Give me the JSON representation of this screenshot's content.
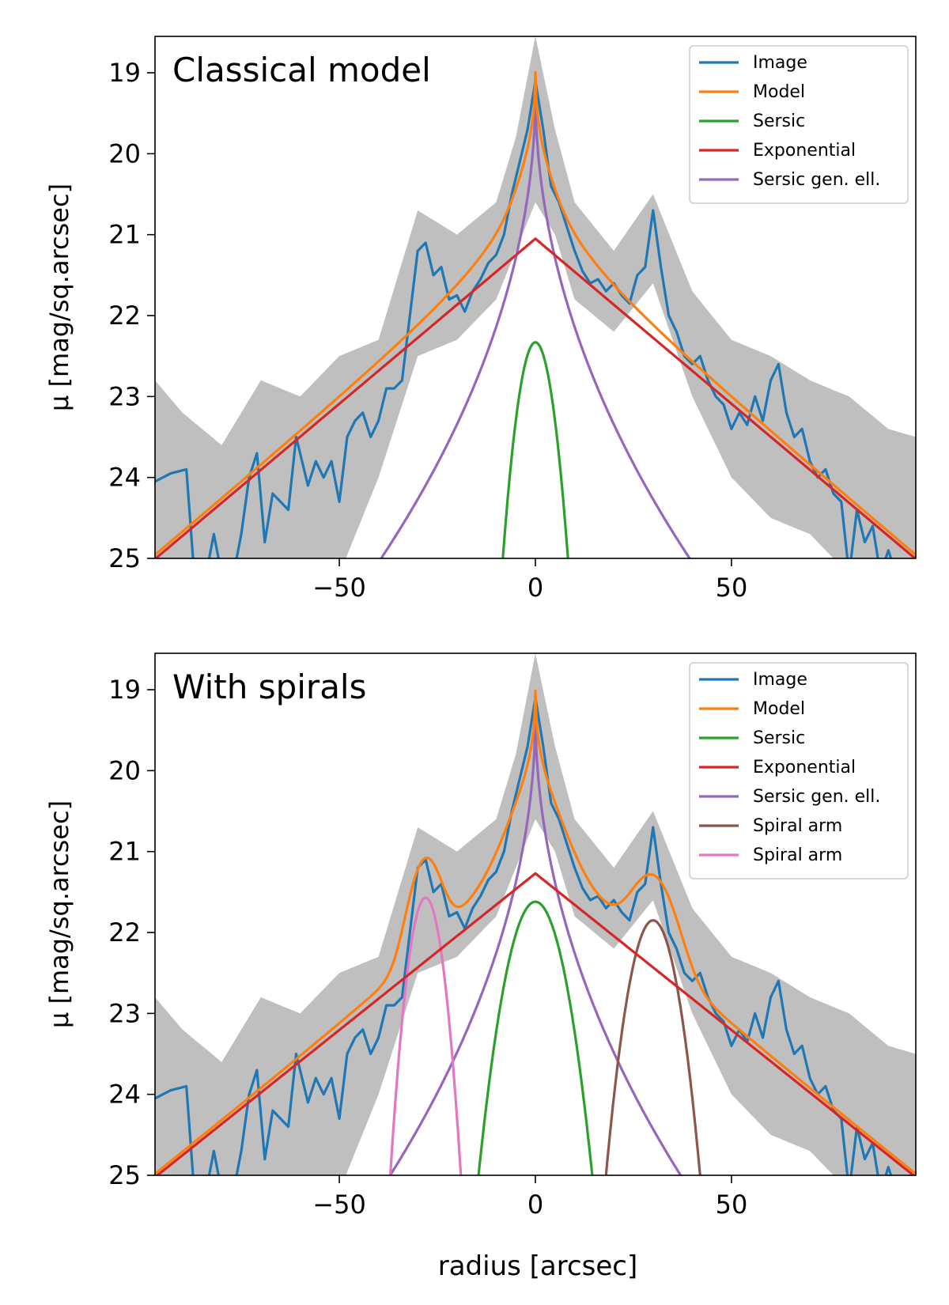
{
  "chart_data": [
    {
      "type": "line",
      "panel_label": "Classical model",
      "xlabel": "",
      "ylabel": "μ [mag/sq.arcsec]",
      "xlim": [
        -97,
        97
      ],
      "ylim": [
        25,
        18.55
      ],
      "y_inverted": true,
      "xticks": [
        -50,
        0,
        50
      ],
      "xtick_labels": [
        "−50",
        "0",
        "50"
      ],
      "yticks": [
        19,
        20,
        21,
        22,
        23,
        24,
        25
      ],
      "ytick_labels": [
        "19",
        "20",
        "21",
        "22",
        "23",
        "24",
        "25"
      ],
      "grid": false,
      "legend_position": "top-right",
      "legend": [
        "Image",
        "Model",
        "Sersic",
        "Exponential",
        "Sersic gen. ell."
      ],
      "colors": {
        "image": "#1f77b4",
        "model": "#ff7f0e",
        "sersic": "#2ca02c",
        "exponential": "#d62728",
        "sersic_gen_ell": "#9467bd",
        "uncertainty": "#bfbfbf"
      },
      "image_profile": [
        [
          -97,
          24.05
        ],
        [
          -93,
          23.95
        ],
        [
          -89,
          23.9
        ],
        [
          -87,
          25.2
        ],
        [
          -84,
          25.2
        ],
        [
          -82,
          24.7
        ],
        [
          -80,
          25.2
        ],
        [
          -77,
          25.2
        ],
        [
          -75,
          24.7
        ],
        [
          -73,
          24.0
        ],
        [
          -71,
          23.7
        ],
        [
          -69,
          24.8
        ],
        [
          -67,
          24.2
        ],
        [
          -65,
          24.3
        ],
        [
          -63,
          24.4
        ],
        [
          -61,
          23.5
        ],
        [
          -59,
          23.9
        ],
        [
          -58,
          24.1
        ],
        [
          -56,
          23.8
        ],
        [
          -54,
          24.0
        ],
        [
          -52,
          23.8
        ],
        [
          -50,
          24.3
        ],
        [
          -48,
          23.5
        ],
        [
          -46,
          23.3
        ],
        [
          -44,
          23.2
        ],
        [
          -42,
          23.5
        ],
        [
          -40,
          23.3
        ],
        [
          -38,
          22.9
        ],
        [
          -36,
          22.9
        ],
        [
          -34,
          22.8
        ],
        [
          -32,
          22.0
        ],
        [
          -30,
          21.2
        ],
        [
          -28,
          21.1
        ],
        [
          -26,
          21.5
        ],
        [
          -24,
          21.4
        ],
        [
          -22,
          21.8
        ],
        [
          -20,
          21.75
        ],
        [
          -18,
          21.95
        ],
        [
          -16,
          21.7
        ],
        [
          -14,
          21.55
        ],
        [
          -12,
          21.35
        ],
        [
          -10,
          21.25
        ],
        [
          -8,
          21.0
        ],
        [
          -6,
          20.5
        ],
        [
          -4,
          20.1
        ],
        [
          -2,
          19.7
        ],
        [
          0,
          19.1
        ],
        [
          2,
          19.7
        ],
        [
          4,
          20.4
        ],
        [
          6,
          20.6
        ],
        [
          8,
          20.9
        ],
        [
          10,
          21.2
        ],
        [
          12,
          21.45
        ],
        [
          14,
          21.6
        ],
        [
          16,
          21.55
        ],
        [
          18,
          21.7
        ],
        [
          20,
          21.6
        ],
        [
          22,
          21.75
        ],
        [
          24,
          21.85
        ],
        [
          26,
          21.5
        ],
        [
          28,
          21.4
        ],
        [
          30,
          20.7
        ],
        [
          32,
          21.4
        ],
        [
          34,
          22.0
        ],
        [
          36,
          22.2
        ],
        [
          38,
          22.5
        ],
        [
          40,
          22.6
        ],
        [
          42,
          22.5
        ],
        [
          44,
          22.8
        ],
        [
          46,
          23.0
        ],
        [
          48,
          23.1
        ],
        [
          50,
          23.4
        ],
        [
          52,
          23.2
        ],
        [
          54,
          23.35
        ],
        [
          56,
          23.0
        ],
        [
          58,
          23.3
        ],
        [
          60,
          22.8
        ],
        [
          62,
          22.6
        ],
        [
          64,
          23.2
        ],
        [
          66,
          23.5
        ],
        [
          68,
          23.4
        ],
        [
          70,
          23.8
        ],
        [
          72,
          24.0
        ],
        [
          74,
          23.9
        ],
        [
          76,
          24.2
        ],
        [
          78,
          24.3
        ],
        [
          80,
          25.2
        ],
        [
          82,
          24.4
        ],
        [
          84,
          24.8
        ],
        [
          86,
          24.6
        ],
        [
          88,
          25.2
        ],
        [
          90,
          24.9
        ],
        [
          92,
          25.2
        ],
        [
          94,
          25.2
        ],
        [
          97,
          25.2
        ]
      ],
      "uncertainty_band": {
        "lower": [
          [
            -97,
            22.8
          ],
          [
            -90,
            23.2
          ],
          [
            -80,
            23.6
          ],
          [
            -70,
            22.8
          ],
          [
            -60,
            23.0
          ],
          [
            -50,
            22.5
          ],
          [
            -40,
            22.3
          ],
          [
            -30,
            20.7
          ],
          [
            -20,
            21.0
          ],
          [
            -10,
            20.6
          ],
          [
            -5,
            19.8
          ],
          [
            0,
            18.55
          ],
          [
            5,
            19.7
          ],
          [
            10,
            20.6
          ],
          [
            20,
            21.2
          ],
          [
            30,
            20.5
          ],
          [
            40,
            21.7
          ],
          [
            50,
            22.3
          ],
          [
            60,
            22.5
          ],
          [
            70,
            22.8
          ],
          [
            80,
            23.0
          ],
          [
            90,
            23.4
          ],
          [
            97,
            23.5
          ]
        ],
        "upper": [
          [
            -97,
            25.2
          ],
          [
            -90,
            25.2
          ],
          [
            -80,
            25.2
          ],
          [
            -70,
            25.2
          ],
          [
            -60,
            25.2
          ],
          [
            -50,
            25.2
          ],
          [
            -40,
            24.0
          ],
          [
            -30,
            22.5
          ],
          [
            -20,
            22.3
          ],
          [
            -10,
            21.8
          ],
          [
            -5,
            21.2
          ],
          [
            0,
            20.6
          ],
          [
            5,
            21.0
          ],
          [
            10,
            21.8
          ],
          [
            20,
            22.2
          ],
          [
            30,
            21.6
          ],
          [
            40,
            23.0
          ],
          [
            50,
            24.0
          ],
          [
            60,
            24.5
          ],
          [
            70,
            24.7
          ],
          [
            80,
            25.2
          ],
          [
            90,
            25.2
          ],
          [
            97,
            25.2
          ]
        ]
      },
      "components": {
        "sersic": {
          "center_mag": 22.33,
          "half_width_at_25": 8.3
        },
        "exponential": {
          "center_mag": 21.05,
          "slope_mag_per_arcsec": 0.0408
        },
        "sersic_gen_ell": {
          "center_mag": 19.23,
          "slope_mag_per_sqrt_arcsec": 0.92
        },
        "model_peak": 19.0
      }
    },
    {
      "type": "line",
      "panel_label": "With spirals",
      "xlabel": "radius [arcsec]",
      "ylabel": "μ [mag/sq.arcsec]",
      "xlim": [
        -97,
        97
      ],
      "ylim": [
        25,
        18.55
      ],
      "y_inverted": true,
      "xticks": [
        -50,
        0,
        50
      ],
      "xtick_labels": [
        "−50",
        "0",
        "50"
      ],
      "yticks": [
        19,
        20,
        21,
        22,
        23,
        24,
        25
      ],
      "ytick_labels": [
        "19",
        "20",
        "21",
        "22",
        "23",
        "24",
        "25"
      ],
      "grid": false,
      "legend_position": "top-right",
      "legend": [
        "Image",
        "Model",
        "Sersic",
        "Exponential",
        "Sersic gen. ell.",
        "Spiral arm",
        "Spiral arm"
      ],
      "colors": {
        "image": "#1f77b4",
        "model": "#ff7f0e",
        "sersic": "#2ca02c",
        "exponential": "#d62728",
        "sersic_gen_ell": "#9467bd",
        "spiral_1": "#8c564b",
        "spiral_2": "#e377c2",
        "uncertainty": "#bfbfbf"
      },
      "image_profile": [
        [
          -97,
          24.05
        ],
        [
          -93,
          23.95
        ],
        [
          -89,
          23.9
        ],
        [
          -87,
          25.2
        ],
        [
          -84,
          25.2
        ],
        [
          -82,
          24.7
        ],
        [
          -80,
          25.2
        ],
        [
          -77,
          25.2
        ],
        [
          -75,
          24.7
        ],
        [
          -73,
          24.0
        ],
        [
          -71,
          23.7
        ],
        [
          -69,
          24.8
        ],
        [
          -67,
          24.2
        ],
        [
          -65,
          24.3
        ],
        [
          -63,
          24.4
        ],
        [
          -61,
          23.5
        ],
        [
          -59,
          23.9
        ],
        [
          -58,
          24.1
        ],
        [
          -56,
          23.8
        ],
        [
          -54,
          24.0
        ],
        [
          -52,
          23.8
        ],
        [
          -50,
          24.3
        ],
        [
          -48,
          23.5
        ],
        [
          -46,
          23.3
        ],
        [
          -44,
          23.2
        ],
        [
          -42,
          23.5
        ],
        [
          -40,
          23.3
        ],
        [
          -38,
          22.9
        ],
        [
          -36,
          22.9
        ],
        [
          -34,
          22.8
        ],
        [
          -32,
          22.0
        ],
        [
          -30,
          21.2
        ],
        [
          -28,
          21.1
        ],
        [
          -26,
          21.5
        ],
        [
          -24,
          21.4
        ],
        [
          -22,
          21.8
        ],
        [
          -20,
          21.75
        ],
        [
          -18,
          21.95
        ],
        [
          -16,
          21.7
        ],
        [
          -14,
          21.55
        ],
        [
          -12,
          21.35
        ],
        [
          -10,
          21.25
        ],
        [
          -8,
          21.0
        ],
        [
          -6,
          20.5
        ],
        [
          -4,
          20.1
        ],
        [
          -2,
          19.7
        ],
        [
          0,
          19.1
        ],
        [
          2,
          19.7
        ],
        [
          4,
          20.4
        ],
        [
          6,
          20.6
        ],
        [
          8,
          20.9
        ],
        [
          10,
          21.2
        ],
        [
          12,
          21.45
        ],
        [
          14,
          21.6
        ],
        [
          16,
          21.55
        ],
        [
          18,
          21.7
        ],
        [
          20,
          21.6
        ],
        [
          22,
          21.75
        ],
        [
          24,
          21.85
        ],
        [
          26,
          21.5
        ],
        [
          28,
          21.4
        ],
        [
          30,
          20.7
        ],
        [
          32,
          21.4
        ],
        [
          34,
          22.0
        ],
        [
          36,
          22.2
        ],
        [
          38,
          22.5
        ],
        [
          40,
          22.6
        ],
        [
          42,
          22.5
        ],
        [
          44,
          22.8
        ],
        [
          46,
          23.0
        ],
        [
          48,
          23.1
        ],
        [
          50,
          23.4
        ],
        [
          52,
          23.2
        ],
        [
          54,
          23.35
        ],
        [
          56,
          23.0
        ],
        [
          58,
          23.3
        ],
        [
          60,
          22.8
        ],
        [
          62,
          22.6
        ],
        [
          64,
          23.2
        ],
        [
          66,
          23.5
        ],
        [
          68,
          23.4
        ],
        [
          70,
          23.8
        ],
        [
          72,
          24.0
        ],
        [
          74,
          23.9
        ],
        [
          76,
          24.2
        ],
        [
          78,
          24.3
        ],
        [
          80,
          25.2
        ],
        [
          82,
          24.4
        ],
        [
          84,
          24.8
        ],
        [
          86,
          24.6
        ],
        [
          88,
          25.2
        ],
        [
          90,
          24.9
        ],
        [
          92,
          25.2
        ],
        [
          94,
          25.2
        ],
        [
          97,
          25.2
        ]
      ],
      "uncertainty_band": {
        "lower": [
          [
            -97,
            22.8
          ],
          [
            -90,
            23.2
          ],
          [
            -80,
            23.6
          ],
          [
            -70,
            22.8
          ],
          [
            -60,
            23.0
          ],
          [
            -50,
            22.5
          ],
          [
            -40,
            22.3
          ],
          [
            -30,
            20.7
          ],
          [
            -20,
            21.0
          ],
          [
            -10,
            20.6
          ],
          [
            -5,
            19.8
          ],
          [
            0,
            18.55
          ],
          [
            5,
            19.7
          ],
          [
            10,
            20.6
          ],
          [
            20,
            21.2
          ],
          [
            30,
            20.5
          ],
          [
            40,
            21.7
          ],
          [
            50,
            22.3
          ],
          [
            60,
            22.5
          ],
          [
            70,
            22.8
          ],
          [
            80,
            23.0
          ],
          [
            90,
            23.4
          ],
          [
            97,
            23.5
          ]
        ],
        "upper": [
          [
            -97,
            25.2
          ],
          [
            -90,
            25.2
          ],
          [
            -80,
            25.2
          ],
          [
            -70,
            25.2
          ],
          [
            -60,
            25.2
          ],
          [
            -50,
            25.2
          ],
          [
            -40,
            24.0
          ],
          [
            -30,
            22.5
          ],
          [
            -20,
            22.3
          ],
          [
            -10,
            21.8
          ],
          [
            -5,
            21.2
          ],
          [
            0,
            20.6
          ],
          [
            5,
            21.0
          ],
          [
            10,
            21.8
          ],
          [
            20,
            22.2
          ],
          [
            30,
            21.6
          ],
          [
            40,
            23.0
          ],
          [
            50,
            24.0
          ],
          [
            60,
            24.5
          ],
          [
            70,
            24.7
          ],
          [
            80,
            25.2
          ],
          [
            90,
            25.2
          ],
          [
            97,
            25.2
          ]
        ]
      },
      "components": {
        "sersic": {
          "center_mag": 21.62,
          "half_width_at_25": 14.5
        },
        "exponential": {
          "center_mag": 21.27,
          "slope_mag_per_arcsec": 0.0387
        },
        "sersic_gen_ell": {
          "center_mag": 19.28,
          "slope_mag_per_sqrt_arcsec": 0.94
        },
        "spiral_1": {
          "center_x": 30,
          "center_mag": 21.85,
          "half_width_at_25": 12
        },
        "spiral_2": {
          "center_x": -28,
          "center_mag": 21.57,
          "half_width_at_25": 9
        },
        "model_peak": 19.0
      }
    }
  ]
}
